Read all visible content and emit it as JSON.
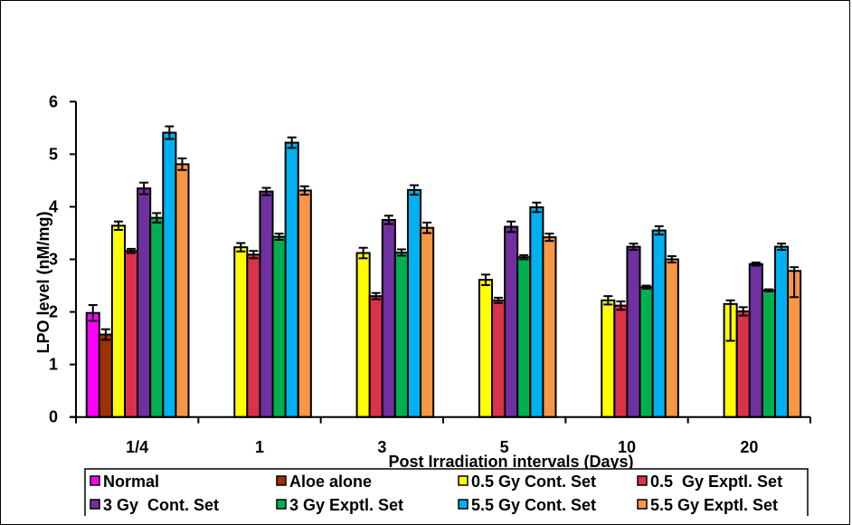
{
  "chart_data": {
    "type": "bar",
    "title": "",
    "xlabel": "Post Irradiation intervals (Days)",
    "ylabel": "LPO level (nM/mg)",
    "ylim": [
      0,
      6
    ],
    "yticks": [
      "0",
      "1",
      "2",
      "3",
      "4",
      "5",
      "6"
    ],
    "grid": false,
    "legend_position": "bottom",
    "categories": [
      "1/4",
      "1",
      "3",
      "5",
      "10",
      "20"
    ],
    "series": [
      {
        "name": "Normal",
        "color": "#FF00FF",
        "values": [
          1.98,
          null,
          null,
          null,
          null,
          null
        ],
        "errors": [
          0.15,
          null,
          null,
          null,
          null,
          null
        ]
      },
      {
        "name": "Aloe alone",
        "color": "#993300",
        "values": [
          1.57,
          null,
          null,
          null,
          null,
          null
        ],
        "errors": [
          0.1,
          null,
          null,
          null,
          null,
          null
        ]
      },
      {
        "name": "0.5 Gy Cont. Set",
        "color": "#FFFF00",
        "values": [
          3.64,
          3.23,
          3.12,
          2.61,
          2.22,
          2.15
        ],
        "errors": [
          0.08,
          0.08,
          0.1,
          0.1,
          0.08,
          0.7
        ]
      },
      {
        "name": "0.5  Gy Exptl. Set",
        "color": "#DC3249",
        "values": [
          3.16,
          3.09,
          2.3,
          2.22,
          2.12,
          2.01
        ],
        "errors": [
          0.04,
          0.07,
          0.06,
          0.05,
          0.08,
          0.08
        ]
      },
      {
        "name": "3 Gy  Cont. Set",
        "color": "#7030A0",
        "values": [
          4.35,
          4.29,
          3.75,
          3.62,
          3.24,
          2.91
        ],
        "errors": [
          0.11,
          0.07,
          0.08,
          0.1,
          0.06,
          0.03
        ]
      },
      {
        "name": "3 Gy Exptl. Set",
        "color": "#00B050",
        "values": [
          3.79,
          3.43,
          3.13,
          3.04,
          2.47,
          2.41
        ],
        "errors": [
          0.09,
          0.06,
          0.06,
          0.04,
          0.03,
          0.02
        ]
      },
      {
        "name": "5.5 Gy Cont. Set",
        "color": "#00B0F0",
        "values": [
          5.41,
          5.22,
          4.32,
          3.99,
          3.55,
          3.24
        ],
        "errors": [
          0.12,
          0.1,
          0.09,
          0.09,
          0.08,
          0.06
        ]
      },
      {
        "name": "5.5 Gy Exptl. Set",
        "color": "#F79646",
        "values": [
          4.81,
          4.31,
          3.6,
          3.42,
          3.0,
          2.78
        ],
        "errors": [
          0.11,
          0.08,
          0.1,
          0.07,
          0.06,
          0.5
        ]
      }
    ]
  }
}
